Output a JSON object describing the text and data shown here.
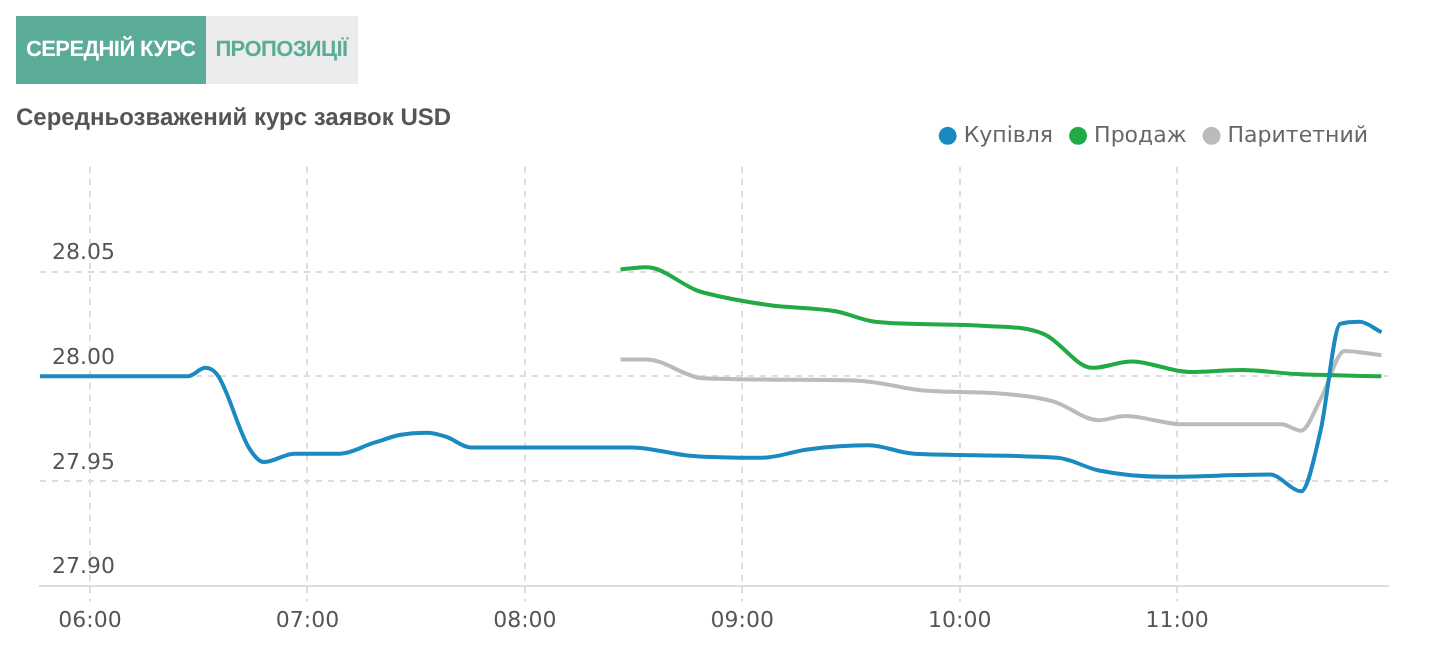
{
  "chart_data": {
    "type": "line",
    "title": "Середньозважений курс заявок USD",
    "annotations": [
      "СЕРЕДНІЙ КУРС",
      "ПРОПОЗИЦІЇ"
    ],
    "xlim": [
      5.77,
      11.97
    ],
    "xticks": [
      {
        "value": 6,
        "label": "06:00"
      },
      {
        "value": 7,
        "label": "07:00"
      },
      {
        "value": 8,
        "label": "08:00"
      },
      {
        "value": 9,
        "label": "09:00"
      },
      {
        "value": 10,
        "label": "10:00"
      },
      {
        "value": 11,
        "label": "11:00"
      }
    ],
    "ylim": [
      27.9,
      28.1
    ],
    "yticks": [
      {
        "value": 27.9,
        "label": "27.90"
      },
      {
        "value": 27.95,
        "label": "27.95"
      },
      {
        "value": 28,
        "label": "28.00"
      },
      {
        "value": 28.05,
        "label": "28.05"
      }
    ],
    "grid": true,
    "legend": "top right",
    "marker": "none",
    "line_style": "solid",
    "series": [
      {
        "name": "Купівля",
        "color": "#1a8ac0",
        "x": [
          5.77,
          6.45,
          6.53,
          6.59,
          6.73,
          6.8,
          6.94,
          7.15,
          7.3,
          7.43,
          7.55,
          7.64,
          7.75,
          8.49,
          8.76,
          9.09,
          9.3,
          9.58,
          9.79,
          10.45,
          10.64,
          10.94,
          11.43,
          11.57,
          11.66,
          11.75,
          11.84,
          11.94
        ],
        "values": [
          28.0,
          28.0,
          28.004,
          28.0,
          27.966,
          27.959,
          27.963,
          27.963,
          27.968,
          27.972,
          27.973,
          27.971,
          27.966,
          27.966,
          27.962,
          27.961,
          27.965,
          27.967,
          27.963,
          27.961,
          27.955,
          27.952,
          27.953,
          27.945,
          27.974,
          28.025,
          28.026,
          28.021
        ]
      },
      {
        "name": "Продаж",
        "color": "#22aa44",
        "x": [
          8.44,
          8.56,
          8.79,
          8.82,
          9.12,
          9.43,
          9.61,
          10.12,
          10.39,
          10.61,
          10.79,
          11.06,
          11.3,
          11.55,
          11.94
        ],
        "values": [
          28.051,
          28.052,
          28.041,
          28.04,
          28.034,
          28.031,
          28.026,
          28.024,
          28.02,
          28.004,
          28.007,
          28.002,
          28.003,
          28.001,
          28.0
        ]
      },
      {
        "name": "Паритетний",
        "color": "#bbbbbb",
        "x": [
          8.44,
          8.56,
          8.82,
          9.52,
          9.85,
          10.15,
          10.43,
          10.64,
          10.76,
          11.03,
          11.48,
          11.57,
          11.66,
          11.77,
          11.94
        ],
        "values": [
          28.008,
          28.008,
          27.999,
          27.998,
          27.993,
          27.992,
          27.988,
          27.979,
          27.981,
          27.977,
          27.977,
          27.974,
          27.989,
          28.012,
          28.01
        ]
      }
    ]
  }
}
